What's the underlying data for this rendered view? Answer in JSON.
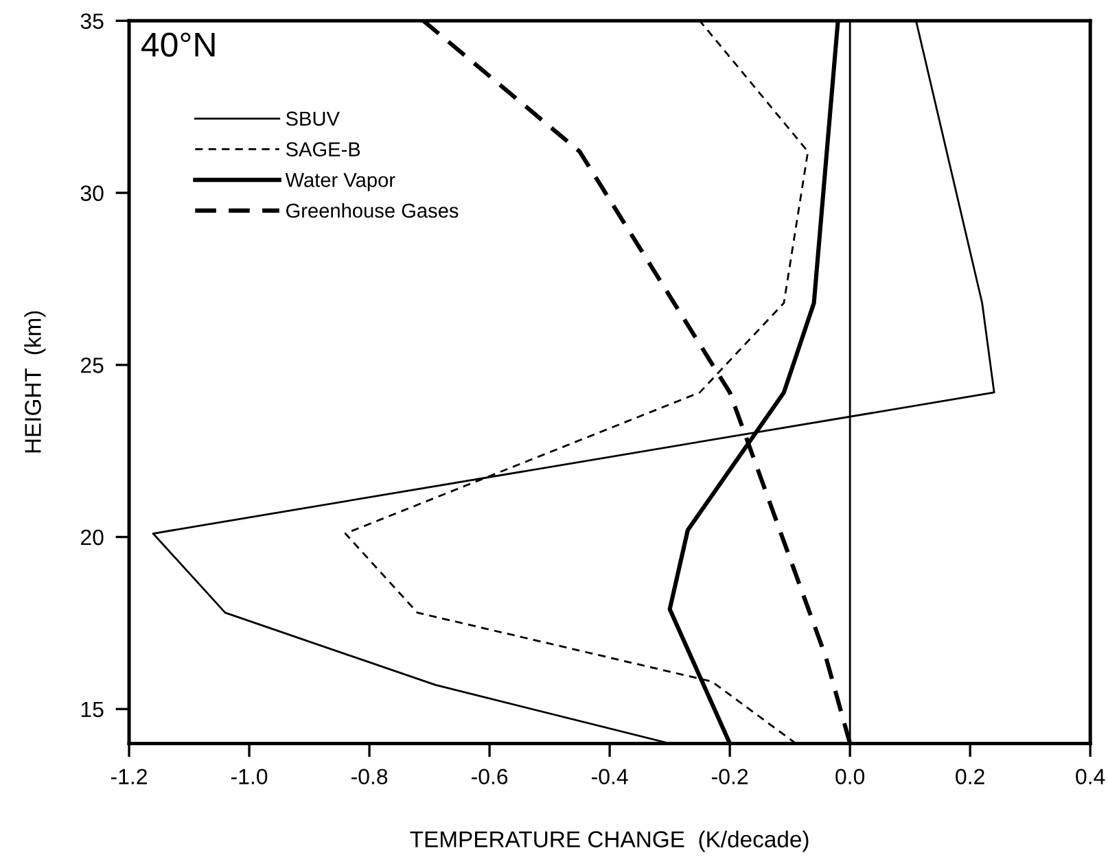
{
  "chart_data": {
    "type": "line",
    "xlabel": "TEMPERATURE CHANGE  (K/decade)",
    "ylabel": "HEIGHT  (km)",
    "annotations": [
      "40°N"
    ],
    "xlim": [
      -1.2,
      0.4
    ],
    "xticks": [
      -1.2,
      {
        "value": -1.0,
        "label": "-1.0"
      },
      -0.8,
      -0.6,
      -0.4,
      -0.2,
      {
        "value": 0.0,
        "label": "0.0"
      },
      0.2,
      0.4
    ],
    "ylim": [
      14,
      35
    ],
    "yticks": [
      15,
      20,
      25,
      30,
      35
    ],
    "grid": false,
    "legend": "top left",
    "marker": "none",
    "ref_lines": [
      {
        "axis": "x",
        "value": 0.0,
        "color": "#000000",
        "line_style": "solid"
      }
    ],
    "series": [
      {
        "name": "SBUV",
        "color": "#000000",
        "line_style": "solid",
        "x": [
          -0.3,
          -0.69,
          -1.04,
          -1.16,
          0.24,
          0.22,
          0.11
        ],
        "values": [
          14,
          15.7,
          17.8,
          20.1,
          24.2,
          26.8,
          35
        ]
      },
      {
        "name": "SAGE-B",
        "color": "#000000",
        "line_style": "dashed",
        "x": [
          -0.09,
          -0.23,
          -0.72,
          -0.84,
          -0.25,
          -0.11,
          -0.07,
          -0.25
        ],
        "values": [
          14,
          15.8,
          17.8,
          20.1,
          24.2,
          26.8,
          31.2,
          35
        ]
      },
      {
        "name": "Water Vapor",
        "color": "#000000",
        "line_style": "solid",
        "x": [
          -0.2,
          -0.3,
          -0.27,
          -0.11,
          -0.06,
          -0.02
        ],
        "values": [
          14,
          17.9,
          20.2,
          24.2,
          26.8,
          35
        ]
      },
      {
        "name": "Greenhouse Gases",
        "color": "#000000",
        "line_style": "dashed",
        "x": [
          0.0,
          -0.04,
          -0.2,
          -0.45,
          -0.71
        ],
        "values": [
          14,
          16.5,
          24.2,
          31.2,
          35
        ]
      }
    ]
  }
}
